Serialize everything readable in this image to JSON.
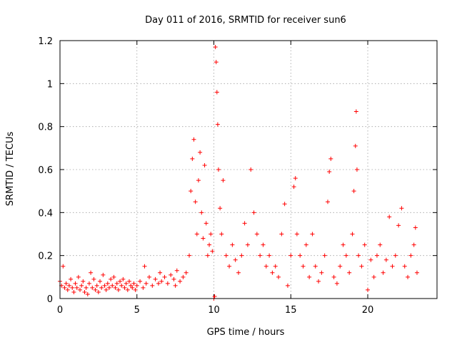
{
  "chart_data": {
    "type": "scatter",
    "title": "Day 011 of 2016, SRMTID for receiver sun6",
    "xlabel": "GPS time / hours",
    "ylabel": "SRMTID / TECUs",
    "xlim": [
      0,
      24.5
    ],
    "ylim": [
      0,
      1.2
    ],
    "grid": true,
    "marker": "+",
    "marker_color": "#ff0000",
    "x_ticks": [
      0,
      5,
      10,
      15,
      20
    ],
    "x_tick_labels": [
      "0",
      "5",
      "10",
      "15",
      "20"
    ],
    "y_ticks": [
      0,
      0.2,
      0.4,
      0.6,
      0.8,
      1.0,
      1.2
    ],
    "y_tick_labels": [
      "0",
      "0.2",
      "0.4",
      "0.6",
      "0.8",
      "1",
      "1.2"
    ],
    "series": [
      {
        "name": "SRMTID sun6",
        "points": [
          [
            0.0,
            0.08
          ],
          [
            0.1,
            0.06
          ],
          [
            0.2,
            0.15
          ],
          [
            0.3,
            0.05
          ],
          [
            0.4,
            0.07
          ],
          [
            0.5,
            0.04
          ],
          [
            0.6,
            0.06
          ],
          [
            0.7,
            0.09
          ],
          [
            0.8,
            0.05
          ],
          [
            0.9,
            0.03
          ],
          [
            1.0,
            0.07
          ],
          [
            1.1,
            0.05
          ],
          [
            1.2,
            0.1
          ],
          [
            1.3,
            0.04
          ],
          [
            1.4,
            0.06
          ],
          [
            1.5,
            0.08
          ],
          [
            1.6,
            0.03
          ],
          [
            1.7,
            0.05
          ],
          [
            1.8,
            0.02
          ],
          [
            1.9,
            0.07
          ],
          [
            2.0,
            0.12
          ],
          [
            2.1,
            0.05
          ],
          [
            2.2,
            0.09
          ],
          [
            2.3,
            0.04
          ],
          [
            2.4,
            0.06
          ],
          [
            2.5,
            0.03
          ],
          [
            2.6,
            0.08
          ],
          [
            2.7,
            0.05
          ],
          [
            2.8,
            0.11
          ],
          [
            2.9,
            0.06
          ],
          [
            3.0,
            0.04
          ],
          [
            3.1,
            0.07
          ],
          [
            3.2,
            0.05
          ],
          [
            3.3,
            0.09
          ],
          [
            3.4,
            0.06
          ],
          [
            3.5,
            0.1
          ],
          [
            3.6,
            0.05
          ],
          [
            3.7,
            0.07
          ],
          [
            3.8,
            0.04
          ],
          [
            3.9,
            0.08
          ],
          [
            4.0,
            0.06
          ],
          [
            4.1,
            0.09
          ],
          [
            4.2,
            0.05
          ],
          [
            4.3,
            0.07
          ],
          [
            4.4,
            0.04
          ],
          [
            4.5,
            0.08
          ],
          [
            4.6,
            0.06
          ],
          [
            4.7,
            0.05
          ],
          [
            4.8,
            0.07
          ],
          [
            4.9,
            0.04
          ],
          [
            5.0,
            0.06
          ],
          [
            5.2,
            0.08
          ],
          [
            5.4,
            0.05
          ],
          [
            5.5,
            0.15
          ],
          [
            5.6,
            0.07
          ],
          [
            5.8,
            0.1
          ],
          [
            6.0,
            0.06
          ],
          [
            6.2,
            0.09
          ],
          [
            6.4,
            0.07
          ],
          [
            6.5,
            0.12
          ],
          [
            6.6,
            0.08
          ],
          [
            6.8,
            0.1
          ],
          [
            7.0,
            0.07
          ],
          [
            7.2,
            0.11
          ],
          [
            7.4,
            0.09
          ],
          [
            7.5,
            0.06
          ],
          [
            7.6,
            0.13
          ],
          [
            7.8,
            0.08
          ],
          [
            8.0,
            0.1
          ],
          [
            8.2,
            0.12
          ],
          [
            8.4,
            0.2
          ],
          [
            8.5,
            0.5
          ],
          [
            8.6,
            0.65
          ],
          [
            8.7,
            0.74
          ],
          [
            8.8,
            0.45
          ],
          [
            8.9,
            0.3
          ],
          [
            9.0,
            0.55
          ],
          [
            9.1,
            0.68
          ],
          [
            9.2,
            0.4
          ],
          [
            9.3,
            0.28
          ],
          [
            9.4,
            0.62
          ],
          [
            9.5,
            0.35
          ],
          [
            9.6,
            0.2
          ],
          [
            9.7,
            0.25
          ],
          [
            9.8,
            0.3
          ],
          [
            9.9,
            0.22
          ],
          [
            10.0,
            0.0
          ],
          [
            10.05,
            0.01
          ],
          [
            10.1,
            1.17
          ],
          [
            10.15,
            1.1
          ],
          [
            10.2,
            0.96
          ],
          [
            10.25,
            0.81
          ],
          [
            10.3,
            0.6
          ],
          [
            10.4,
            0.42
          ],
          [
            10.5,
            0.3
          ],
          [
            10.6,
            0.55
          ],
          [
            10.8,
            0.2
          ],
          [
            11.0,
            0.15
          ],
          [
            11.2,
            0.25
          ],
          [
            11.4,
            0.18
          ],
          [
            11.6,
            0.12
          ],
          [
            11.8,
            0.2
          ],
          [
            12.0,
            0.35
          ],
          [
            12.2,
            0.25
          ],
          [
            12.4,
            0.6
          ],
          [
            12.6,
            0.4
          ],
          [
            12.8,
            0.3
          ],
          [
            13.0,
            0.2
          ],
          [
            13.2,
            0.25
          ],
          [
            13.4,
            0.15
          ],
          [
            13.6,
            0.2
          ],
          [
            13.8,
            0.12
          ],
          [
            14.0,
            0.15
          ],
          [
            14.2,
            0.1
          ],
          [
            14.4,
            0.3
          ],
          [
            14.6,
            0.44
          ],
          [
            14.8,
            0.06
          ],
          [
            15.0,
            0.2
          ],
          [
            15.2,
            0.52
          ],
          [
            15.3,
            0.56
          ],
          [
            15.4,
            0.3
          ],
          [
            15.6,
            0.2
          ],
          [
            15.8,
            0.15
          ],
          [
            16.0,
            0.25
          ],
          [
            16.2,
            0.1
          ],
          [
            16.4,
            0.3
          ],
          [
            16.6,
            0.15
          ],
          [
            16.8,
            0.08
          ],
          [
            17.0,
            0.12
          ],
          [
            17.2,
            0.2
          ],
          [
            17.4,
            0.45
          ],
          [
            17.5,
            0.59
          ],
          [
            17.6,
            0.65
          ],
          [
            17.8,
            0.1
          ],
          [
            18.0,
            0.07
          ],
          [
            18.2,
            0.15
          ],
          [
            18.4,
            0.25
          ],
          [
            18.6,
            0.2
          ],
          [
            18.8,
            0.12
          ],
          [
            19.0,
            0.3
          ],
          [
            19.1,
            0.5
          ],
          [
            19.2,
            0.71
          ],
          [
            19.25,
            0.87
          ],
          [
            19.3,
            0.6
          ],
          [
            19.4,
            0.2
          ],
          [
            19.6,
            0.15
          ],
          [
            19.8,
            0.25
          ],
          [
            20.0,
            0.04
          ],
          [
            20.2,
            0.18
          ],
          [
            20.4,
            0.1
          ],
          [
            20.6,
            0.2
          ],
          [
            20.8,
            0.25
          ],
          [
            21.0,
            0.12
          ],
          [
            21.2,
            0.18
          ],
          [
            21.4,
            0.38
          ],
          [
            21.6,
            0.15
          ],
          [
            21.8,
            0.2
          ],
          [
            22.0,
            0.34
          ],
          [
            22.2,
            0.42
          ],
          [
            22.4,
            0.15
          ],
          [
            22.6,
            0.1
          ],
          [
            22.8,
            0.2
          ],
          [
            23.0,
            0.25
          ],
          [
            23.1,
            0.33
          ],
          [
            23.2,
            0.12
          ]
        ]
      }
    ]
  }
}
